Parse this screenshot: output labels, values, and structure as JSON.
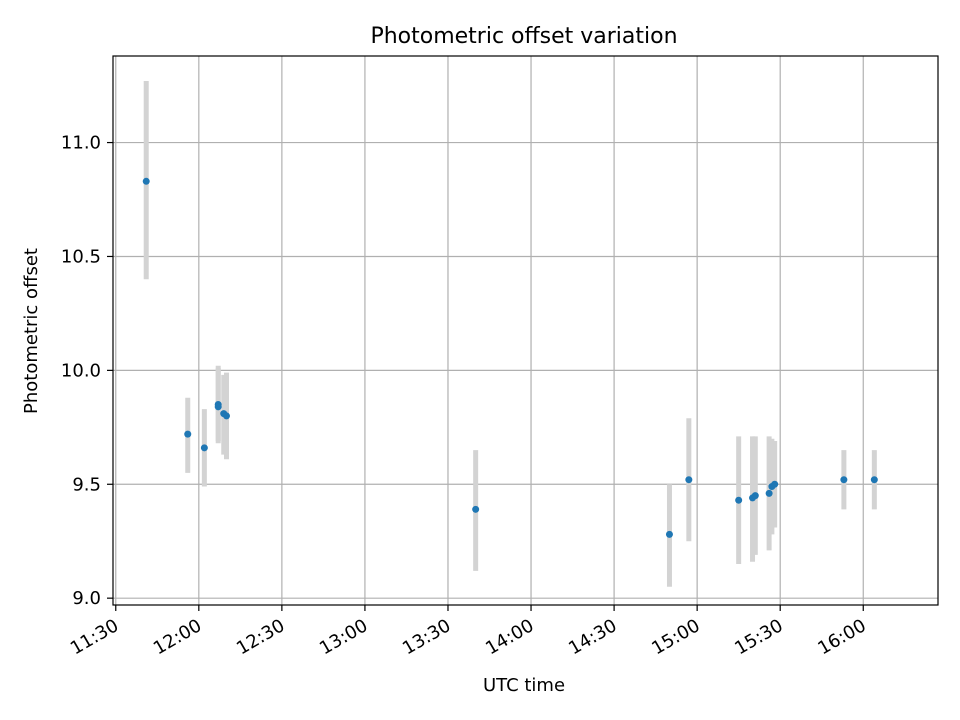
{
  "chart_data": {
    "type": "scatter",
    "title": "Photometric offset variation",
    "xlabel": "UTC time",
    "ylabel": "Photometric offset",
    "x_is_time": true,
    "xlim": [
      "11:29",
      "16:27"
    ],
    "ylim": [
      8.97,
      11.38
    ],
    "x_ticks": [
      "11:30",
      "12:00",
      "12:30",
      "13:00",
      "13:30",
      "14:00",
      "14:30",
      "15:00",
      "15:30",
      "16:00"
    ],
    "y_ticks": [
      9.0,
      9.5,
      10.0,
      10.5,
      11.0
    ],
    "grid": true,
    "marker_color": "#1f77b4",
    "errorbar_color": "#d3d3d3",
    "series": [
      {
        "points": [
          {
            "time": "11:41",
            "value": 10.83,
            "low": 10.4,
            "high": 11.27
          },
          {
            "time": "11:56",
            "value": 9.72,
            "low": 9.55,
            "high": 9.88
          },
          {
            "time": "12:02",
            "value": 9.66,
            "low": 9.49,
            "high": 9.83
          },
          {
            "time": "12:07",
            "value": 9.85,
            "low": 9.69,
            "high": 10.02
          },
          {
            "time": "12:07",
            "value": 9.84,
            "low": 9.68,
            "high": 10.01
          },
          {
            "time": "12:09",
            "value": 9.81,
            "low": 9.63,
            "high": 9.98
          },
          {
            "time": "12:10",
            "value": 9.8,
            "low": 9.61,
            "high": 9.99
          },
          {
            "time": "13:40",
            "value": 9.39,
            "low": 9.12,
            "high": 9.65
          },
          {
            "time": "14:50",
            "value": 9.28,
            "low": 9.05,
            "high": 9.5
          },
          {
            "time": "14:57",
            "value": 9.52,
            "low": 9.25,
            "high": 9.79
          },
          {
            "time": "15:15",
            "value": 9.43,
            "low": 9.15,
            "high": 9.71
          },
          {
            "time": "15:20",
            "value": 9.44,
            "low": 9.16,
            "high": 9.71
          },
          {
            "time": "15:21",
            "value": 9.45,
            "low": 9.19,
            "high": 9.71
          },
          {
            "time": "15:26",
            "value": 9.46,
            "low": 9.21,
            "high": 9.71
          },
          {
            "time": "15:27",
            "value": 9.49,
            "low": 9.28,
            "high": 9.7
          },
          {
            "time": "15:28",
            "value": 9.5,
            "low": 9.31,
            "high": 9.69
          },
          {
            "time": "15:53",
            "value": 9.52,
            "low": 9.39,
            "high": 9.65
          },
          {
            "time": "16:04",
            "value": 9.52,
            "low": 9.39,
            "high": 9.65
          }
        ]
      }
    ]
  }
}
